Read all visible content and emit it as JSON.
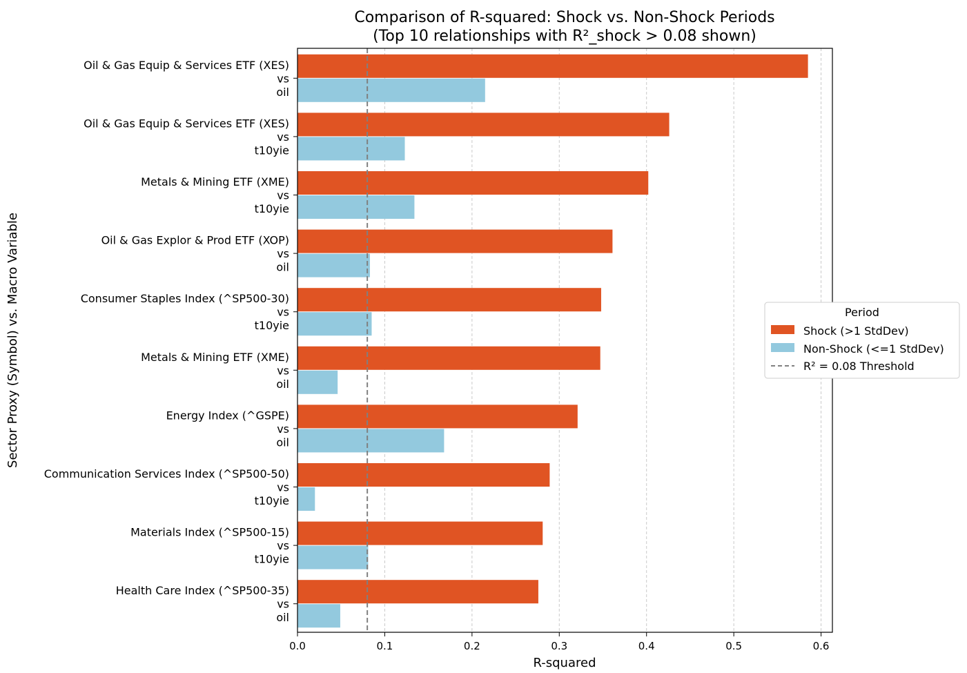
{
  "colors": {
    "shock": "#E05423",
    "non_shock": "#93C9DE",
    "threshold": "#808080",
    "grid": "#c8c8c8"
  },
  "chart_data": {
    "type": "bar",
    "orientation": "horizontal",
    "title_line1": "Comparison of R-squared: Shock vs. Non-Shock Periods",
    "title_line2": "(Top 10 relationships with R²_shock > 0.08 shown)",
    "xlabel": "R-squared",
    "ylabel": "Sector Proxy (Symbol) vs. Macro Variable",
    "xlim": [
      0,
      0.613
    ],
    "xticks": [
      0.0,
      0.1,
      0.2,
      0.3,
      0.4,
      0.5,
      0.6
    ],
    "xtick_labels": [
      "0.0",
      "0.1",
      "0.2",
      "0.3",
      "0.4",
      "0.5",
      "0.6"
    ],
    "grid": "x-axis, dashed",
    "categories": [
      [
        "Oil & Gas Equip & Services ETF (XES)",
        "vs",
        "oil"
      ],
      [
        "Oil & Gas Equip & Services ETF (XES)",
        "vs",
        "t10yie"
      ],
      [
        "Metals & Mining ETF (XME)",
        "vs",
        "t10yie"
      ],
      [
        "Oil & Gas Explor & Prod ETF (XOP)",
        "vs",
        "oil"
      ],
      [
        "Consumer Staples Index (^SP500-30)",
        "vs",
        "t10yie"
      ],
      [
        "Metals & Mining ETF (XME)",
        "vs",
        "oil"
      ],
      [
        "Energy Index (^GSPE)",
        "vs",
        "oil"
      ],
      [
        "Communication Services Index (^SP500-50)",
        "vs",
        "t10yie"
      ],
      [
        "Materials Index (^SP500-15)",
        "vs",
        "t10yie"
      ],
      [
        "Health Care Index (^SP500-35)",
        "vs",
        "oil"
      ]
    ],
    "series": [
      {
        "name": "Shock (>1 StdDev)",
        "values": [
          0.585,
          0.426,
          0.402,
          0.361,
          0.348,
          0.347,
          0.321,
          0.289,
          0.281,
          0.276
        ]
      },
      {
        "name": "Non-Shock (<=1 StdDev)",
        "values": [
          0.215,
          0.123,
          0.134,
          0.083,
          0.085,
          0.046,
          0.168,
          0.02,
          0.081,
          0.049
        ]
      }
    ],
    "threshold": {
      "value": 0.08,
      "label": "R² = 0.08 Threshold"
    },
    "legend": {
      "title": "Period",
      "placement": "center-right, outside plot",
      "entries": [
        "Shock (>1 StdDev)",
        "Non-Shock (<=1 StdDev)",
        "R² = 0.08 Threshold"
      ]
    }
  }
}
